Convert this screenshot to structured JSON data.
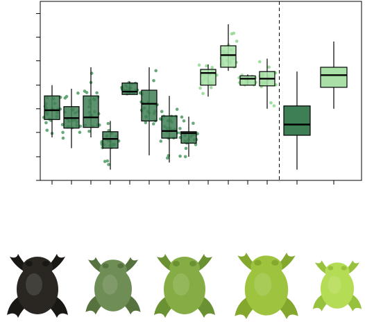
{
  "chart_data": {
    "type": "box",
    "title": "",
    "xlabel": "",
    "ylabel": "",
    "grid": false,
    "legend": "none",
    "ylim": [
      0,
      250
    ],
    "y_ticks": [
      0,
      33,
      67,
      100,
      133,
      167,
      200,
      233
    ],
    "divider_after_group": 12,
    "colors": {
      "dark": "#3f7f55",
      "light": "#a8e0a8",
      "dot_dark": "#4e9a63",
      "dot_light": "#8ed88e"
    },
    "groups": [
      {
        "tone": "dark",
        "whisker_low": 60,
        "q1": 85,
        "median": 98,
        "q3": 118,
        "whisker_high": 133
      },
      {
        "tone": "dark",
        "whisker_low": 45,
        "q1": 73,
        "median": 87,
        "q3": 103,
        "whisker_high": 128
      },
      {
        "tone": "dark",
        "whisker_low": 60,
        "q1": 74,
        "median": 88,
        "q3": 118,
        "whisker_high": 158
      },
      {
        "tone": "dark",
        "whisker_low": 15,
        "q1": 45,
        "median": 58,
        "q3": 68,
        "whisker_high": 83
      },
      {
        "tone": "dark",
        "whisker_low": 120,
        "q1": 120,
        "median": 124,
        "q3": 136,
        "whisker_high": 138
      },
      {
        "tone": "dark",
        "whisker_low": 35,
        "q1": 83,
        "median": 107,
        "q3": 126,
        "whisker_high": 158
      },
      {
        "tone": "dark",
        "whisker_low": 25,
        "q1": 59,
        "median": 69,
        "q3": 90,
        "whisker_high": 118
      },
      {
        "tone": "dark",
        "whisker_low": 33,
        "q1": 52,
        "median": 66,
        "q3": 68,
        "whisker_high": 89
      },
      {
        "tone": "light",
        "whisker_low": 117,
        "q1": 133,
        "median": 150,
        "q3": 155,
        "whisker_high": 162
      },
      {
        "tone": "light",
        "whisker_low": 153,
        "q1": 158,
        "median": 175,
        "q3": 188,
        "whisker_high": 218
      },
      {
        "tone": "light",
        "whisker_low": 133,
        "q1": 133,
        "median": 142,
        "q3": 146,
        "whisker_high": 148
      },
      {
        "tone": "light",
        "whisker_low": 100,
        "q1": 132,
        "median": 142,
        "q3": 152,
        "whisker_high": 170
      },
      {
        "tone": "dark",
        "whisker_low": 15,
        "q1": 63,
        "median": 78,
        "q3": 104,
        "whisker_high": 152
      },
      {
        "tone": "light",
        "whisker_low": 100,
        "q1": 130,
        "median": 147,
        "q3": 158,
        "whisker_high": 194
      }
    ]
  },
  "frogs": [
    {
      "name": "frog-1",
      "body": "#2a2722",
      "shade": "#1a1814"
    },
    {
      "name": "frog-2",
      "body": "#6f8e55",
      "shade": "#55723f"
    },
    {
      "name": "frog-3",
      "body": "#86ad45",
      "shade": "#6a9132"
    },
    {
      "name": "frog-4",
      "body": "#9dc33f",
      "shade": "#84a82e"
    },
    {
      "name": "frog-5",
      "body": "#b5dc55",
      "shade": "#98c23d"
    }
  ]
}
